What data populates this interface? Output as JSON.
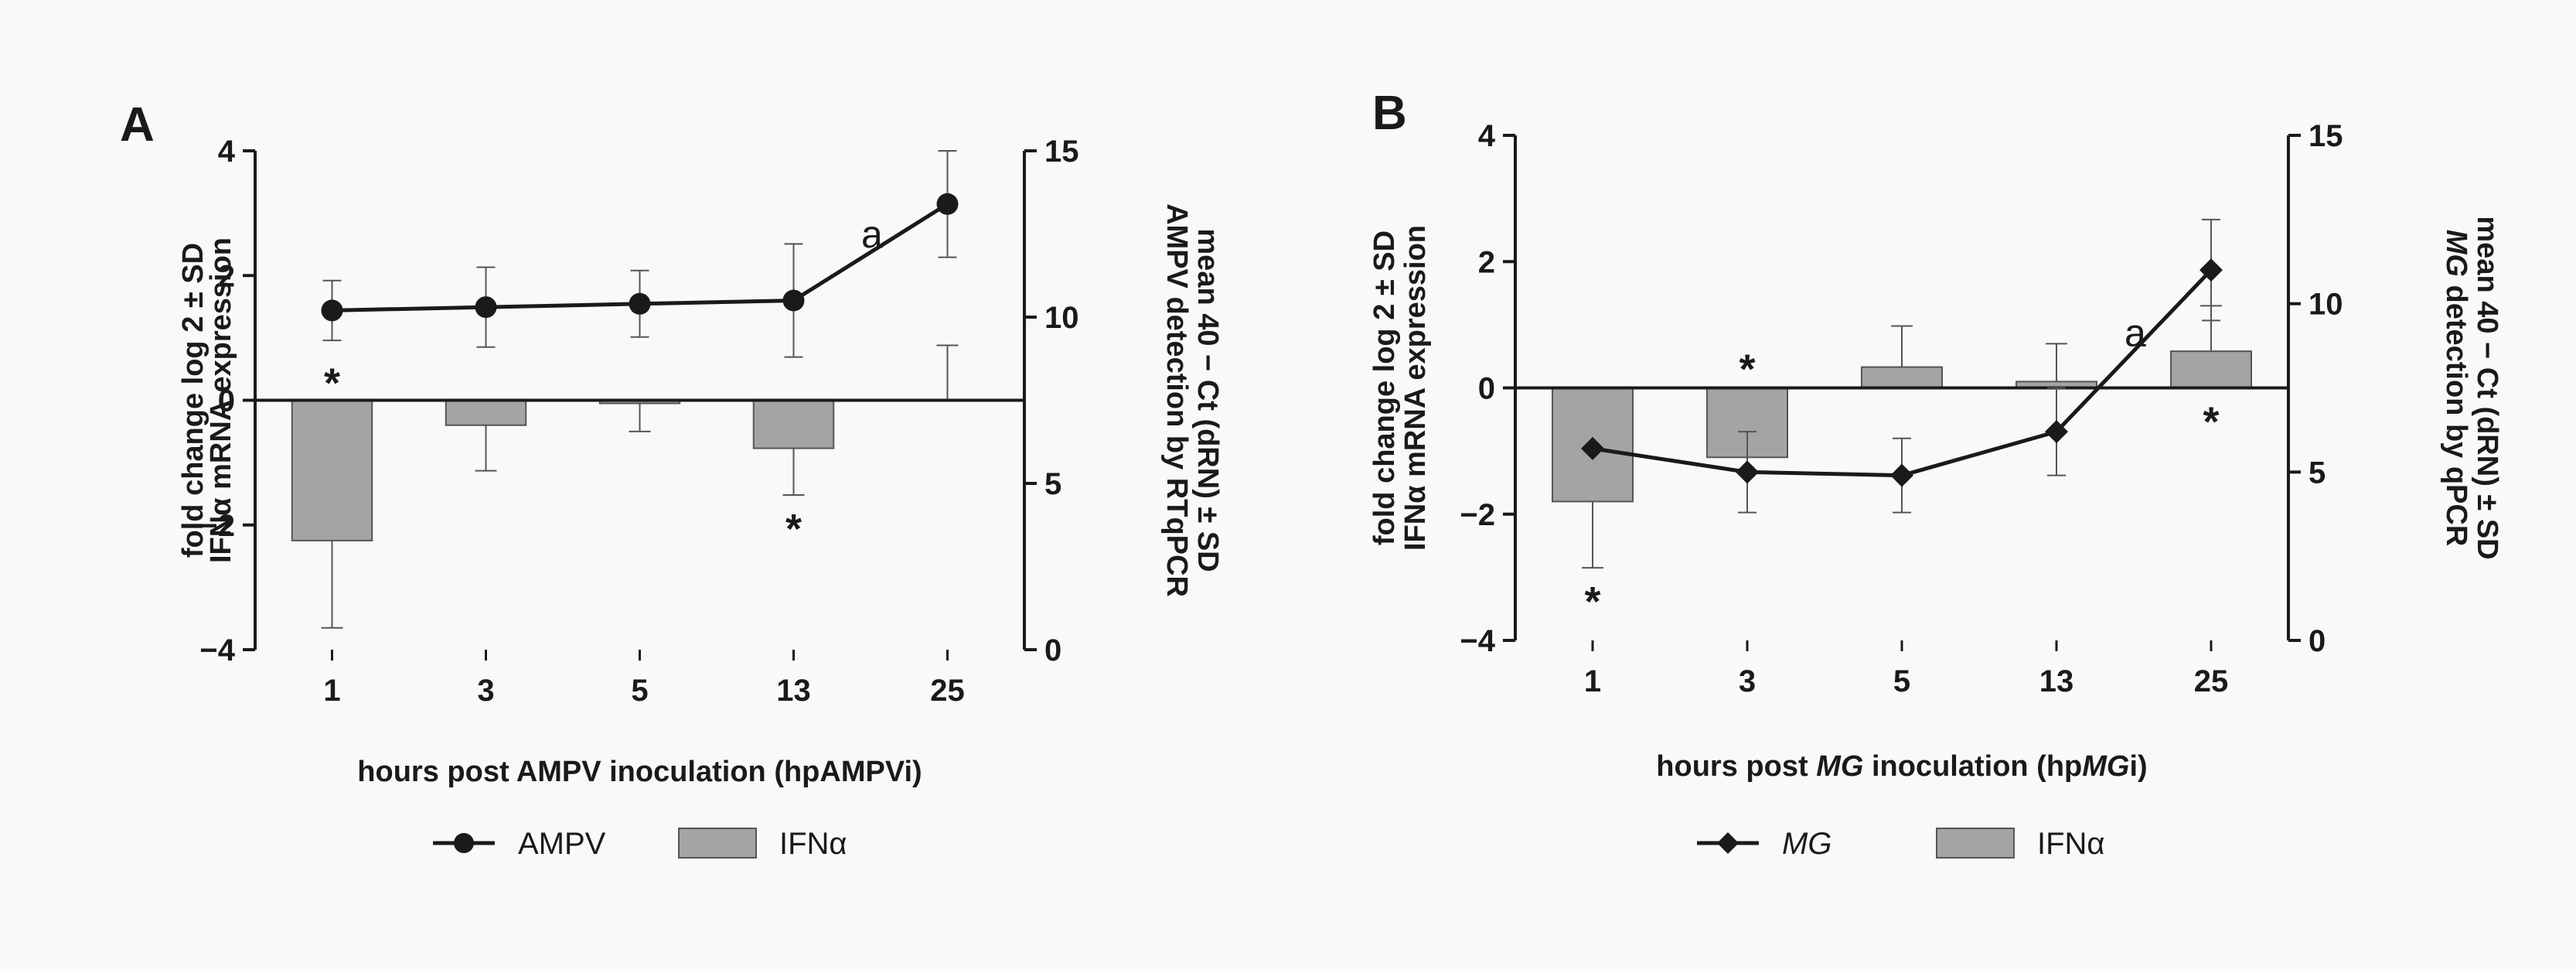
{
  "chart_data": [
    {
      "type": "bar+line",
      "panel": "A",
      "categories": [
        "1",
        "3",
        "5",
        "13",
        "25"
      ],
      "xlabel": "hours post AMPV inoculation (hpAMPVi)",
      "ylabel_left": [
        "fold change log 2 ± SD",
        "IFNα mRNA expression"
      ],
      "ylabel_right": [
        "AMPV detection by RTqPCR",
        "mean 40 − Ct (dRN) ± SD"
      ],
      "ylim_left": [
        -4,
        4
      ],
      "yticks_left": [
        -4,
        -2,
        0,
        2,
        4
      ],
      "ytick_labels_left": [
        "−4",
        "−2",
        "0",
        "2",
        "4"
      ],
      "ylim_right": [
        0,
        15
      ],
      "yticks_right": [
        0,
        5,
        10,
        15
      ],
      "ytick_labels_right": [
        "0",
        "5",
        "10",
        "15"
      ],
      "series": [
        {
          "name": "IFNα",
          "kind": "bar",
          "axis": "left",
          "italic": false,
          "values": [
            -2.25,
            -0.4,
            -0.05,
            -0.77,
            0.0
          ],
          "errors": [
            1.4,
            0.73,
            0.45,
            0.75,
            0.88
          ],
          "significant": [
            true,
            false,
            false,
            true,
            false
          ]
        },
        {
          "name": "AMPV",
          "kind": "line",
          "axis": "right",
          "marker": "circle",
          "italic": false,
          "values": [
            10.2,
            10.3,
            10.4,
            10.5,
            13.4
          ],
          "errors": [
            0.9,
            1.2,
            1.0,
            1.7,
            1.6
          ]
        }
      ],
      "annotations": [
        {
          "text": "a",
          "at_category": "13",
          "note": "between 13 and 25"
        }
      ],
      "significance_marker": "*"
    },
    {
      "type": "bar+line",
      "panel": "B",
      "categories": [
        "1",
        "3",
        "5",
        "13",
        "25"
      ],
      "xlabel_parts": [
        {
          "text": "hours post ",
          "italic": false
        },
        {
          "text": "MG",
          "italic": true
        },
        {
          "text": " inoculation (hp",
          "italic": false
        },
        {
          "text": "MG",
          "italic": true
        },
        {
          "text": "i)",
          "italic": false
        }
      ],
      "ylabel_left": [
        "fold change log 2 ± SD",
        "IFNα mRNA expression"
      ],
      "ylabel_right_parts": [
        [
          {
            "text": "MG",
            "italic": true
          },
          {
            "text": " detection by qPCR",
            "italic": false
          }
        ],
        [
          {
            "text": "mean 40 − Ct (dRN) ± SD",
            "italic": false
          }
        ]
      ],
      "ylim_left": [
        -4,
        4
      ],
      "yticks_left": [
        -4,
        -2,
        0,
        2,
        4
      ],
      "ytick_labels_left": [
        "−4",
        "−2",
        "0",
        "2",
        "4"
      ],
      "ylim_right": [
        0,
        15
      ],
      "yticks_right": [
        0,
        5,
        10,
        15
      ],
      "ytick_labels_right": [
        "0",
        "5",
        "10",
        "15"
      ],
      "series": [
        {
          "name": "IFNα",
          "kind": "bar",
          "axis": "left",
          "italic": false,
          "values": [
            -1.8,
            -1.1,
            0.33,
            0.1,
            0.58
          ],
          "errors": [
            1.05,
            0.0,
            0.65,
            0.6,
            0.72
          ],
          "significant": [
            true,
            true,
            false,
            false,
            true
          ]
        },
        {
          "name": "MG",
          "kind": "line",
          "axis": "right",
          "marker": "diamond",
          "italic": true,
          "values": [
            5.7,
            5.0,
            4.9,
            6.2,
            11.0
          ],
          "errors": [
            0.0,
            1.2,
            1.1,
            1.3,
            1.5
          ]
        }
      ],
      "annotations": [
        {
          "text": "a",
          "at_category": "13",
          "note": "between 13 and 25"
        }
      ],
      "significance_marker": "*"
    }
  ]
}
